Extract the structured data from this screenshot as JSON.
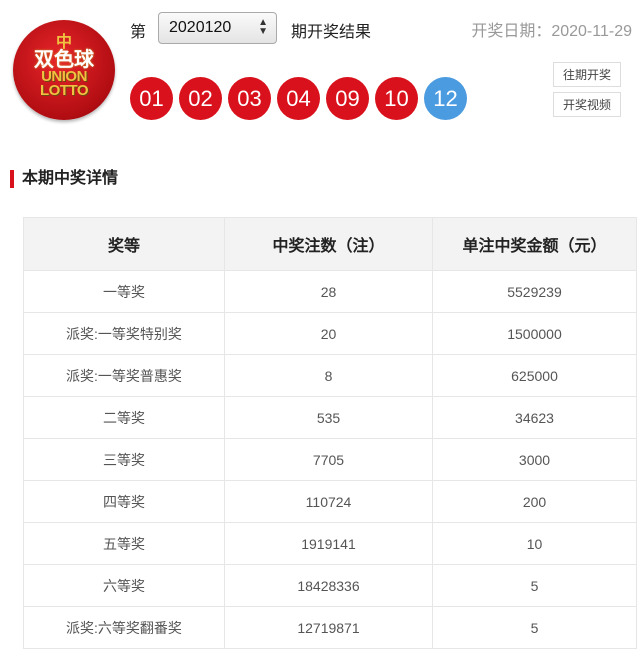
{
  "logo": {
    "cn": "双色球",
    "en1": "UNION",
    "en2": "LOTTO"
  },
  "header": {
    "prefix": "第",
    "issue": "2020120",
    "suffix": "期开奖结果",
    "date_label": "开奖日期：2020-11-29"
  },
  "balls": {
    "red": [
      "01",
      "02",
      "03",
      "04",
      "09",
      "10"
    ],
    "blue": "12",
    "red_color": "#d9111c",
    "blue_color": "#4b9be0"
  },
  "buttons": {
    "history": "往期开奖",
    "video": "开奖视频"
  },
  "section_title": "本期中奖详情",
  "table": {
    "headers": [
      "奖等",
      "中奖注数（注）",
      "单注中奖金额（元）"
    ],
    "rows": [
      [
        "一等奖",
        "28",
        "5529239"
      ],
      [
        "派奖:一等奖特别奖",
        "20",
        "1500000"
      ],
      [
        "派奖:一等奖普惠奖",
        "8",
        "625000"
      ],
      [
        "二等奖",
        "535",
        "34623"
      ],
      [
        "三等奖",
        "7705",
        "3000"
      ],
      [
        "四等奖",
        "110724",
        "200"
      ],
      [
        "五等奖",
        "1919141",
        "10"
      ],
      [
        "六等奖",
        "18428336",
        "5"
      ],
      [
        "派奖:六等奖翻番奖",
        "12719871",
        "5"
      ]
    ]
  }
}
